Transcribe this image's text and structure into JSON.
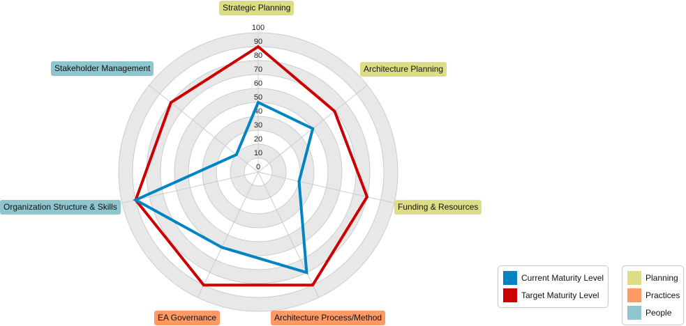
{
  "chart_data": {
    "type": "radar",
    "title": "",
    "categories": [
      "Strategic Planning",
      "Architecture Planning",
      "Funding & Resources",
      "Architecture Process/Method",
      "EA Governance",
      "Organization Structure & Skills",
      "Stakeholder Management"
    ],
    "category_groups": [
      "Planning",
      "Planning",
      "Planning",
      "Practices",
      "Practices",
      "People",
      "People"
    ],
    "series": [
      {
        "name": "Current Maturity Level",
        "color": "#0084c4",
        "values": [
          50,
          50,
          30,
          80,
          60,
          90,
          20
        ]
      },
      {
        "name": "Target Maturity Level",
        "color": "#cc0000",
        "values": [
          90,
          70,
          80,
          90,
          90,
          90,
          80
        ]
      }
    ],
    "radial_axis": {
      "min": 0,
      "max": 100,
      "step": 10,
      "tick_labels": [
        "0",
        "10",
        "20",
        "30",
        "40",
        "50",
        "60",
        "70",
        "80",
        "90",
        "100"
      ]
    },
    "grid": true,
    "legend_position": "bottom-right"
  },
  "labels": {
    "strategic_planning": "Strategic Planning",
    "architecture_planning": "Architecture Planning",
    "funding_resources": "Funding & Resources",
    "architecture_process": "Architecture Process/Method",
    "ea_governance": "EA Governance",
    "org_structure": "Organization Structure & Skills",
    "stakeholder_management": "Stakeholder Management"
  },
  "legend_series": {
    "current": {
      "label": "Current Maturity Level",
      "color": "#0084c4"
    },
    "target": {
      "label": "Target Maturity Level",
      "color": "#cc0000"
    }
  },
  "legend_groups": {
    "planning": {
      "label": "Planning",
      "color": "#dddd88"
    },
    "practices": {
      "label": "Practices",
      "color": "#ff9966"
    },
    "people": {
      "label": "People",
      "color": "#8fc5cc"
    }
  },
  "colors": {
    "band_grey": "#e8e8e8",
    "grid_line": "#cccccc",
    "axis_line": "#cccccc"
  }
}
